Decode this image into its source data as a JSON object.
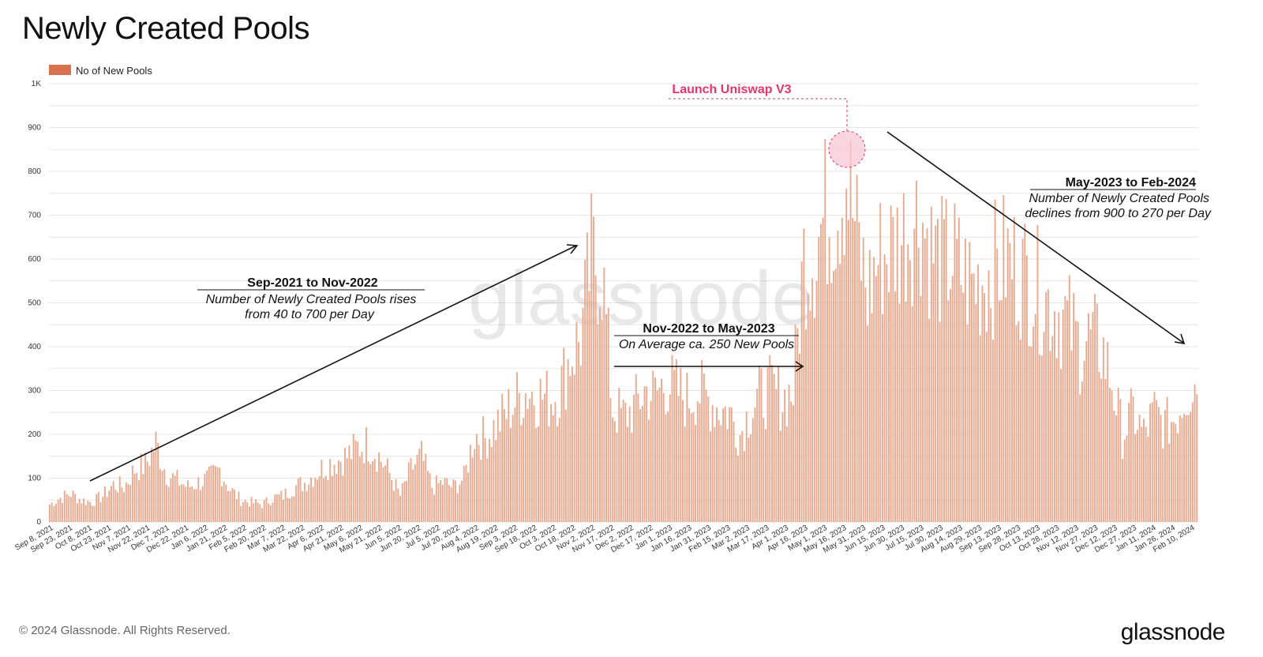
{
  "page": {
    "title": "Newly Created Pools",
    "copyright": "© 2024 Glassnode. All Rights Reserved.",
    "brand": "glassnode",
    "watermark": "glassnode"
  },
  "colors": {
    "bar": "#e9a98e",
    "legend": "#d9714f",
    "grid": "#e6e6e6",
    "launch": "#e8336b",
    "launch_fill": "#f7c7d4"
  },
  "chart_data": {
    "type": "bar",
    "legend": [
      "No of New Pools"
    ],
    "ylim": [
      0,
      1000
    ],
    "y_ticks": [
      0,
      100,
      200,
      300,
      400,
      500,
      600,
      700,
      800,
      900,
      1000
    ],
    "y_tick_labels": [
      "0",
      "100",
      "200",
      "300",
      "400",
      "500",
      "600",
      "700",
      "800",
      "900",
      "1K"
    ],
    "x_tick_labels": [
      "Sep 8, 2021",
      "Sep 23, 2021",
      "Oct 8, 2021",
      "Oct 23, 2021",
      "Nov 7, 2021",
      "Nov 22, 2021",
      "Dec 7, 2021",
      "Dec 22, 2021",
      "Jan 6, 2022",
      "Jan 21, 2022",
      "Feb 5, 2022",
      "Feb 20, 2022",
      "Mar 7, 2022",
      "Mar 22, 2022",
      "Apr 6, 2022",
      "Apr 21, 2022",
      "May 6, 2022",
      "May 21, 2022",
      "Jun 5, 2022",
      "Jun 20, 2022",
      "Jul 5, 2022",
      "Jul 20, 2022",
      "Aug 4, 2022",
      "Aug 19, 2022",
      "Sep 3, 2022",
      "Sep 18, 2022",
      "Oct 3, 2022",
      "Oct 18, 2022",
      "Nov 2, 2022",
      "Nov 17, 2022",
      "Dec 2, 2022",
      "Dec 17, 2022",
      "Jan 1, 2023",
      "Jan 16, 2023",
      "Jan 31, 2023",
      "Feb 15, 2023",
      "Mar 2, 2023",
      "Mar 17, 2023",
      "Apr 1, 2023",
      "Apr 16, 2023",
      "May 1, 2023",
      "May 16, 2023",
      "May 31, 2023",
      "Jun 15, 2023",
      "Jun 30, 2023",
      "Jul 15, 2023",
      "Jul 30, 2023",
      "Aug 14, 2023",
      "Aug 29, 2023",
      "Sep 13, 2023",
      "Sep 28, 2023",
      "Oct 13, 2023",
      "Oct 28, 2023",
      "Nov 12, 2023",
      "Nov 27, 2023",
      "Dec 12, 2023",
      "Dec 27, 2023",
      "Jan 11, 2024",
      "Jan 26, 2024",
      "Feb 10, 2024"
    ],
    "x_range": [
      "Sep 8, 2021",
      "Feb 13, 2024"
    ],
    "series": [
      {
        "name": "No of New Pools",
        "values_every_5_days": [
          40,
          55,
          65,
          50,
          45,
          60,
          85,
          80,
          120,
          130,
          180,
          110,
          95,
          80,
          90,
          100,
          120,
          75,
          50,
          45,
          40,
          55,
          60,
          80,
          90,
          110,
          130,
          140,
          150,
          170,
          180,
          150,
          110,
          60,
          120,
          150,
          80,
          90,
          80,
          100,
          200,
          190,
          220,
          250,
          280,
          300,
          290,
          280,
          300,
          380,
          420,
          600,
          580,
          260,
          240,
          260,
          300,
          290,
          320,
          300,
          280,
          300,
          280,
          260,
          250,
          200,
          260,
          290,
          300,
          280,
          300,
          600,
          620,
          700,
          720,
          800,
          650,
          520,
          600,
          620,
          640,
          680,
          700,
          620,
          590,
          600,
          560,
          540,
          560,
          580,
          600,
          580,
          560,
          530,
          500,
          480,
          450,
          400,
          420,
          400,
          320,
          200,
          250,
          200,
          250,
          220,
          240,
          300,
          320
        ]
      }
    ],
    "annotations": [
      {
        "title": "Sep-2021 to Nov-2022",
        "lines": [
          "Number of Newly Created Pools rises",
          "from 40 to 700 per Day"
        ]
      },
      {
        "title": "Nov-2022 to May-2023",
        "lines": [
          "On Average ca. 250 New Pools"
        ]
      },
      {
        "title": "May-2023 to Feb-2024",
        "lines": [
          "Number of Newly Created Pools",
          "declines from 900 to 270 per Day"
        ]
      },
      {
        "title": "Launch Uniswap V3",
        "lines": []
      }
    ]
  }
}
